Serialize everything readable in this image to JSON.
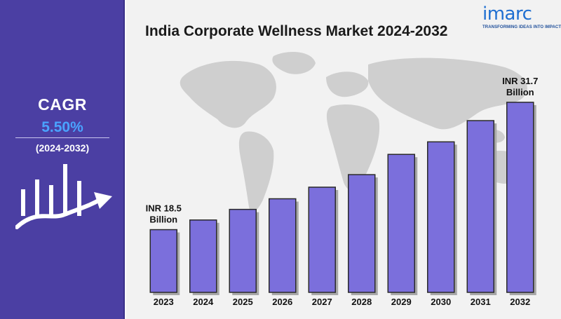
{
  "sidebar": {
    "cagr_label": "CAGR",
    "cagr_value": "5.50%",
    "period": "(2024-2032)",
    "icon": "growth-bars-arrow-icon"
  },
  "header": {
    "title": "India Corporate Wellness Market  2024-2032"
  },
  "logo": {
    "word": "imarc",
    "tagline": "TRANSFORMING IDEAS INTO IMPACT"
  },
  "colors": {
    "sidebar_bg": "#4b3fa3",
    "bar_fill": "#7b6fdc",
    "accent_value": "#4aa3ff",
    "logo_blue": "#1f6fd1"
  },
  "chart_data": {
    "type": "bar",
    "title": "India Corporate Wellness Market  2024-2032",
    "categories": [
      "2023",
      "2024",
      "2025",
      "2026",
      "2027",
      "2028",
      "2029",
      "2030",
      "2031",
      "2032"
    ],
    "values": [
      18.5,
      19.5,
      20.6,
      21.7,
      22.9,
      24.2,
      26.3,
      27.6,
      29.8,
      31.7
    ],
    "annotations": [
      {
        "category": "2023",
        "line1": "INR 18.5",
        "line2": "Billion"
      },
      {
        "category": "2032",
        "line1": "INR 31.7",
        "line2": "Billion"
      }
    ],
    "ylim": [
      12.0,
      33.0
    ],
    "grid": false,
    "xlabel": "",
    "ylabel": ""
  }
}
